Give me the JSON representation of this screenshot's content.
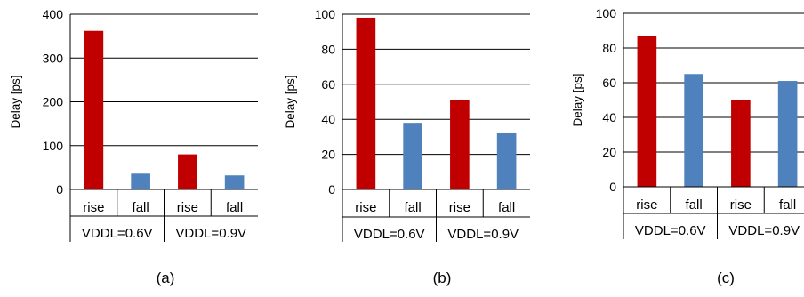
{
  "colors": {
    "rise": "#C00000",
    "fall": "#4F81BD",
    "grid": "#000000"
  },
  "chart_data": [
    {
      "type": "bar",
      "caption": "(a)",
      "ylabel": "Delay [ps]",
      "ylim": [
        0,
        400
      ],
      "yticks": [
        "0",
        "100",
        "200",
        "300",
        "400"
      ],
      "categories": [
        "rise",
        "fall",
        "rise",
        "fall"
      ],
      "groups": [
        "VDDL=0.6V",
        "VDDL=0.9V"
      ],
      "values": [
        362,
        36,
        80,
        32
      ],
      "grid": true
    },
    {
      "type": "bar",
      "caption": "(b)",
      "ylabel": "Delay [ps]",
      "ylim": [
        0,
        100
      ],
      "yticks": [
        "0",
        "20",
        "40",
        "60",
        "80",
        "100"
      ],
      "categories": [
        "rise",
        "fall",
        "rise",
        "fall"
      ],
      "groups": [
        "VDDL=0.6V",
        "VDDL=0.9V"
      ],
      "values": [
        98,
        38,
        51,
        32
      ],
      "grid": true
    },
    {
      "type": "bar",
      "caption": "(c)",
      "ylabel": "Delay [ps]",
      "ylim": [
        0,
        100
      ],
      "yticks": [
        "0",
        "20",
        "40",
        "60",
        "80",
        "100"
      ],
      "categories": [
        "rise",
        "fall",
        "rise",
        "fall"
      ],
      "groups": [
        "VDDL=0.6V",
        "VDDL=0.9V"
      ],
      "values": [
        87,
        65,
        50,
        61
      ],
      "grid": true
    }
  ]
}
